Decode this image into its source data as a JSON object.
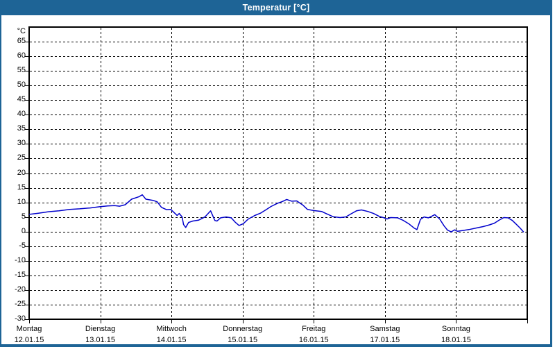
{
  "window": {
    "title": "Temperatur [°C]"
  },
  "colors": {
    "titlebar": "#1e6496",
    "frame": "#1e6496",
    "line": "#0000cc",
    "grid": "#000000",
    "background": "#ffffff",
    "text": "#000000"
  },
  "chart_data": {
    "type": "line",
    "title": "Temperatur [°C]",
    "ylabel": "°C",
    "y_unit": "°C",
    "ylim": [
      -30,
      70
    ],
    "y_ticks": [
      65,
      60,
      55,
      50,
      45,
      40,
      35,
      30,
      25,
      20,
      15,
      10,
      5,
      0,
      -5,
      -10,
      -15,
      -20,
      -25,
      -30
    ],
    "grid": "dashed",
    "legend": "none",
    "x_days": [
      {
        "name": "Montag",
        "date": "12.01.15"
      },
      {
        "name": "Dienstag",
        "date": "13.01.15"
      },
      {
        "name": "Mittwoch",
        "date": "14.01.15"
      },
      {
        "name": "Donnerstag",
        "date": "15.01.15"
      },
      {
        "name": "Freitag",
        "date": "16.01.15"
      },
      {
        "name": "Samstag",
        "date": "17.01.15"
      },
      {
        "name": "Sonntag",
        "date": "18.01.15"
      }
    ],
    "series": [
      {
        "name": "Temperatur",
        "color": "#0000cc",
        "points": [
          [
            0.0,
            5.9
          ],
          [
            0.13,
            6.3
          ],
          [
            0.27,
            6.8
          ],
          [
            0.42,
            7.1
          ],
          [
            0.57,
            7.6
          ],
          [
            0.71,
            7.8
          ],
          [
            0.86,
            8.1
          ],
          [
            0.99,
            8.5
          ],
          [
            1.1,
            8.8
          ],
          [
            1.2,
            8.9
          ],
          [
            1.27,
            8.7
          ],
          [
            1.35,
            9.2
          ],
          [
            1.44,
            11.1
          ],
          [
            1.54,
            11.9
          ],
          [
            1.59,
            12.6
          ],
          [
            1.64,
            11.1
          ],
          [
            1.74,
            10.7
          ],
          [
            1.8,
            10.2
          ],
          [
            1.86,
            8.3
          ],
          [
            1.93,
            7.5
          ],
          [
            1.99,
            7.6
          ],
          [
            2.05,
            6.2
          ],
          [
            2.08,
            5.5
          ],
          [
            2.11,
            6.2
          ],
          [
            2.15,
            5.0
          ],
          [
            2.17,
            2.4
          ],
          [
            2.2,
            1.4
          ],
          [
            2.24,
            3.1
          ],
          [
            2.3,
            3.6
          ],
          [
            2.38,
            3.9
          ],
          [
            2.47,
            5.0
          ],
          [
            2.55,
            7.1
          ],
          [
            2.61,
            3.8
          ],
          [
            2.64,
            3.6
          ],
          [
            2.69,
            4.7
          ],
          [
            2.77,
            5.0
          ],
          [
            2.84,
            4.7
          ],
          [
            2.9,
            3.1
          ],
          [
            2.95,
            2.1
          ],
          [
            3.01,
            2.7
          ],
          [
            3.08,
            4.3
          ],
          [
            3.17,
            5.5
          ],
          [
            3.25,
            6.3
          ],
          [
            3.33,
            7.5
          ],
          [
            3.4,
            8.6
          ],
          [
            3.49,
            9.7
          ],
          [
            3.56,
            10.3
          ],
          [
            3.62,
            11.0
          ],
          [
            3.69,
            10.4
          ],
          [
            3.76,
            10.5
          ],
          [
            3.85,
            9.0
          ],
          [
            3.91,
            7.6
          ],
          [
            4.0,
            7.2
          ],
          [
            4.11,
            6.9
          ],
          [
            4.17,
            6.2
          ],
          [
            4.27,
            5.1
          ],
          [
            4.37,
            4.8
          ],
          [
            4.45,
            5.0
          ],
          [
            4.52,
            6.0
          ],
          [
            4.6,
            7.1
          ],
          [
            4.67,
            7.4
          ],
          [
            4.76,
            6.9
          ],
          [
            4.84,
            6.2
          ],
          [
            4.92,
            5.2
          ],
          [
            4.99,
            4.7
          ],
          [
            5.03,
            4.3
          ],
          [
            5.08,
            4.8
          ],
          [
            5.18,
            4.7
          ],
          [
            5.26,
            3.8
          ],
          [
            5.34,
            2.6
          ],
          [
            5.41,
            1.2
          ],
          [
            5.45,
            0.7
          ],
          [
            5.5,
            4.2
          ],
          [
            5.55,
            5.0
          ],
          [
            5.61,
            4.7
          ],
          [
            5.66,
            5.3
          ],
          [
            5.7,
            5.8
          ],
          [
            5.77,
            4.3
          ],
          [
            5.83,
            2.0
          ],
          [
            5.88,
            0.5
          ],
          [
            5.93,
            -0.1
          ],
          [
            5.98,
            0.6
          ],
          [
            6.02,
            0.1
          ],
          [
            6.08,
            0.3
          ],
          [
            6.18,
            0.7
          ],
          [
            6.28,
            1.2
          ],
          [
            6.38,
            1.7
          ],
          [
            6.47,
            2.3
          ],
          [
            6.54,
            2.9
          ],
          [
            6.61,
            4.0
          ],
          [
            6.67,
            4.8
          ],
          [
            6.73,
            4.7
          ],
          [
            6.79,
            3.8
          ],
          [
            6.85,
            2.4
          ],
          [
            6.9,
            1.2
          ],
          [
            6.95,
            -0.2
          ]
        ]
      }
    ]
  }
}
